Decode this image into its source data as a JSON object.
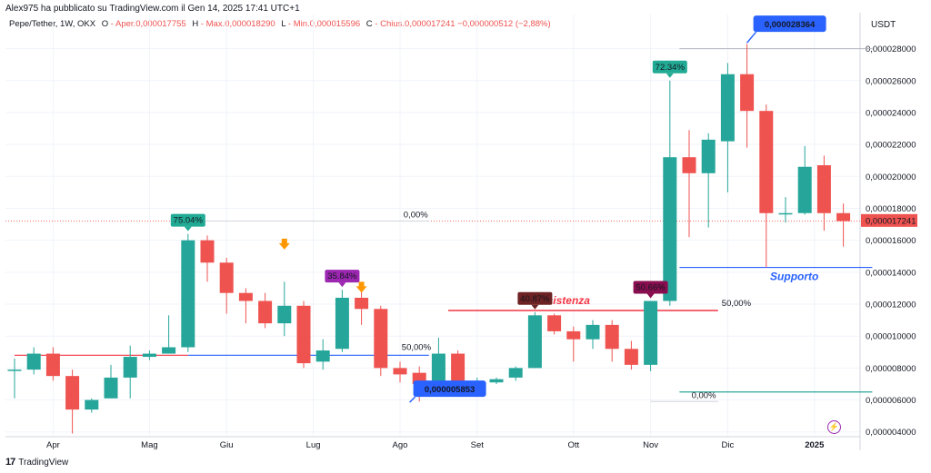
{
  "header": {
    "published": "Alex975 ha pubblicato su TradingView.com il Gen 14, 2025 17:41 UTC+1"
  },
  "legend": {
    "symbol": "Pepe/Tether, 1W, OKX",
    "open_label": "O",
    "open_value": "- Aper.0,000017755",
    "high_label": "H",
    "high_value": "- Max.0,000018290",
    "low_label": "L",
    "low_value": "- Min.0,000015596",
    "close_label": "C",
    "close_value": "- Chius.0,000017241",
    "change_value": "−0,000000512 (−2,88%)"
  },
  "currency": "USDT",
  "footer": {
    "brand": "TradingView",
    "logo": "17"
  },
  "colors": {
    "up": "#26a69a",
    "down": "#ef5350",
    "resistance": "#f23645",
    "support_line": "#2962ff",
    "price_tag": "#ef5350",
    "price_callout": "#2962ff"
  },
  "chart_data": {
    "type": "candlestick",
    "title": "Pepe/Tether, 1W, OKX",
    "ylabel": "USDT",
    "ylim": [
      3.7e-06,
      2.9e-05
    ],
    "y_ticks": [
      "0,000004000",
      "0,000006000",
      "0,000008000",
      "0,000010000",
      "0,000012000",
      "0,000014000",
      "0,000016000",
      "0,000018000",
      "0,000020000",
      "0,000022000",
      "0,000024000",
      "0,000026000",
      "0,000028000"
    ],
    "y_tick_values": [
      4e-06,
      6e-06,
      8e-06,
      1e-05,
      1.2e-05,
      1.4e-05,
      1.6e-05,
      1.8e-05,
      2e-05,
      2.2e-05,
      2.4e-05,
      2.6e-05,
      2.8e-05
    ],
    "x_labels": [
      "Apr",
      "Mag",
      "Giu",
      "Lug",
      "Ago",
      "Set",
      "Ott",
      "Nov",
      "Dic",
      "2025"
    ],
    "x_label_index": [
      2,
      7,
      11,
      15.5,
      20,
      24,
      29,
      33,
      37,
      41.5
    ],
    "candles": [
      {
        "o": 7.9e-06,
        "h": 8.6e-06,
        "l": 6.1e-06,
        "c": 7.9e-06
      },
      {
        "o": 7.9e-06,
        "h": 9.3e-06,
        "l": 7.6e-06,
        "c": 8.9e-06
      },
      {
        "o": 8.9e-06,
        "h": 9.3e-06,
        "l": 7.2e-06,
        "c": 7.5e-06
      },
      {
        "o": 7.5e-06,
        "h": 7.9e-06,
        "l": 3.9e-06,
        "c": 5.4e-06
      },
      {
        "o": 5.4e-06,
        "h": 6.1e-06,
        "l": 5.2e-06,
        "c": 6e-06
      },
      {
        "o": 6.1e-06,
        "h": 8.2e-06,
        "l": 6.1e-06,
        "c": 7.4e-06
      },
      {
        "o": 7.4e-06,
        "h": 9.4e-06,
        "l": 6.1e-06,
        "c": 8.7e-06
      },
      {
        "o": 8.7e-06,
        "h": 9.1e-06,
        "l": 8.5e-06,
        "c": 8.9e-06
      },
      {
        "o": 8.9e-06,
        "h": 1.13e-05,
        "l": 8.9e-06,
        "c": 9.3e-06
      },
      {
        "o": 9.3e-06,
        "h": 1.64e-05,
        "l": 9e-06,
        "c": 1.6e-05
      },
      {
        "o": 1.6e-05,
        "h": 1.63e-05,
        "l": 1.34e-05,
        "c": 1.46e-05
      },
      {
        "o": 1.46e-05,
        "h": 1.49e-05,
        "l": 1.14e-05,
        "c": 1.27e-05
      },
      {
        "o": 1.27e-05,
        "h": 1.3e-05,
        "l": 1.08e-05,
        "c": 1.22e-05
      },
      {
        "o": 1.22e-05,
        "h": 1.27e-05,
        "l": 1.05e-05,
        "c": 1.08e-05
      },
      {
        "o": 1.08e-05,
        "h": 1.34e-05,
        "l": 1e-05,
        "c": 1.19e-05
      },
      {
        "o": 1.19e-05,
        "h": 1.22e-05,
        "l": 8e-06,
        "c": 8.3e-06
      },
      {
        "o": 8.4e-06,
        "h": 9.8e-06,
        "l": 7.9e-06,
        "c": 9.1e-06
      },
      {
        "o": 9.2e-06,
        "h": 1.29e-05,
        "l": 9e-06,
        "c": 1.24e-05
      },
      {
        "o": 1.24e-05,
        "h": 1.29e-05,
        "l": 1.07e-05,
        "c": 1.17e-05
      },
      {
        "o": 1.17e-05,
        "h": 1.19e-05,
        "l": 7.5e-06,
        "c": 8e-06
      },
      {
        "o": 8e-06,
        "h": 8.4e-06,
        "l": 7.1e-06,
        "c": 7.6e-06
      },
      {
        "o": 7.7e-06,
        "h": 8.1e-06,
        "l": 5.9e-06,
        "c": 7e-06
      },
      {
        "o": 7e-06,
        "h": 9.9e-06,
        "l": 6.6e-06,
        "c": 8.9e-06
      },
      {
        "o": 8.9e-06,
        "h": 9.1e-06,
        "l": 6.9e-06,
        "c": 7.1e-06
      },
      {
        "o": 7.1e-06,
        "h": 7.4e-06,
        "l": 6.9e-06,
        "c": 7.1e-06
      },
      {
        "o": 7.1e-06,
        "h": 7.4e-06,
        "l": 7e-06,
        "c": 7.3e-06
      },
      {
        "o": 7.4e-06,
        "h": 8.1e-06,
        "l": 7.2e-06,
        "c": 8e-06
      },
      {
        "o": 8e-06,
        "h": 1.15e-05,
        "l": 8e-06,
        "c": 1.13e-05
      },
      {
        "o": 1.13e-05,
        "h": 1.14e-05,
        "l": 1.01e-05,
        "c": 1.03e-05
      },
      {
        "o": 1.03e-05,
        "h": 1.06e-05,
        "l": 8.4e-06,
        "c": 9.8e-06
      },
      {
        "o": 9.8e-06,
        "h": 1.1e-05,
        "l": 9.2e-06,
        "c": 1.07e-05
      },
      {
        "o": 1.07e-05,
        "h": 1.1e-05,
        "l": 8.4e-06,
        "c": 9.2e-06
      },
      {
        "o": 9.2e-06,
        "h": 9.7e-06,
        "l": 7.9e-06,
        "c": 8.2e-06
      },
      {
        "o": 8.2e-06,
        "h": 1.22e-05,
        "l": 7.8e-06,
        "c": 1.22e-05
      },
      {
        "o": 1.22e-05,
        "h": 2.6e-05,
        "l": 1.19e-05,
        "c": 2.12e-05
      },
      {
        "o": 2.12e-05,
        "h": 2.29e-05,
        "l": 1.62e-05,
        "c": 2.02e-05
      },
      {
        "o": 2.02e-05,
        "h": 2.27e-05,
        "l": 1.68e-05,
        "c": 2.23e-05
      },
      {
        "o": 2.22e-05,
        "h": 2.71e-05,
        "l": 1.9e-05,
        "c": 2.64e-05
      },
      {
        "o": 2.64e-05,
        "h": 2.83e-05,
        "l": 2.18e-05,
        "c": 2.41e-05
      },
      {
        "o": 2.41e-05,
        "h": 2.45e-05,
        "l": 1.43e-05,
        "c": 1.77e-05
      },
      {
        "o": 1.77e-05,
        "h": 1.87e-05,
        "l": 1.71e-05,
        "c": 1.77e-05
      },
      {
        "o": 1.77e-05,
        "h": 2.19e-05,
        "l": 1.76e-05,
        "c": 2.06e-05
      },
      {
        "o": 2.07e-05,
        "h": 2.13e-05,
        "l": 1.66e-05,
        "c": 1.77e-05
      },
      {
        "o": 1.77e-05,
        "h": 1.83e-05,
        "l": 1.56e-05,
        "c": 1.72e-05
      }
    ],
    "last_price": 1.7241e-05,
    "last_price_label": "0,000017241",
    "annotations": {
      "pct_labels": [
        {
          "text": "75.04%",
          "candle": 9,
          "color": "#22ab94",
          "price": 1.64e-05
        },
        {
          "text": "35.84%",
          "candle": 17,
          "color": "#9c27b0",
          "price": 1.29e-05
        },
        {
          "text": "40.87%",
          "candle": 27,
          "color": "#6d2323",
          "price": 1.15e-05
        },
        {
          "text": "50.66%",
          "candle": 33,
          "color": "#880e4f",
          "price": 1.22e-05
        },
        {
          "text": "72.34%",
          "candle": 34,
          "color": "#22ab94",
          "price": 2.6e-05
        }
      ],
      "callouts": [
        {
          "text": "0,000028364",
          "candle": 38,
          "price": 2.8364e-05
        },
        {
          "text": "0,000005853",
          "candle": 20.5,
          "price": 5.853e-06
        }
      ],
      "resistance": {
        "label": "Resistenza",
        "price": 1.16e-05,
        "from": 22.5,
        "to": 36.5
      },
      "support": {
        "label": "Supporto",
        "price": 1.43e-05,
        "from": 34.5,
        "to": 44.5
      },
      "fib_top": {
        "label": "0,00%",
        "price": 1.72e-05,
        "from": 9,
        "to": 21.5
      },
      "fib_mid": {
        "label": "50,00%",
        "price": 8.8e-06,
        "from": 9,
        "to": 21.5
      },
      "fib2_mid": {
        "label": "50,00%",
        "price": 1.16e-05,
        "from": 33,
        "to": 36.5
      },
      "fib2_bottom": {
        "label": "0,00%",
        "price": 5.9e-06,
        "from": 33,
        "to": 36.5
      },
      "fib2_top": {
        "price": 2.8e-05,
        "from": 34.5,
        "to": 44.5
      },
      "fib2_low": {
        "price": 6.5e-06,
        "from": 34.5,
        "to": 44.5
      },
      "level_left": {
        "price": 8.8e-06,
        "from": 0,
        "to": 9
      },
      "dotted_price_level": 1.72e-05,
      "arrows": [
        {
          "candle": 14,
          "price": 1.57e-05
        },
        {
          "candle": 18,
          "price": 1.3e-05
        }
      ]
    }
  }
}
